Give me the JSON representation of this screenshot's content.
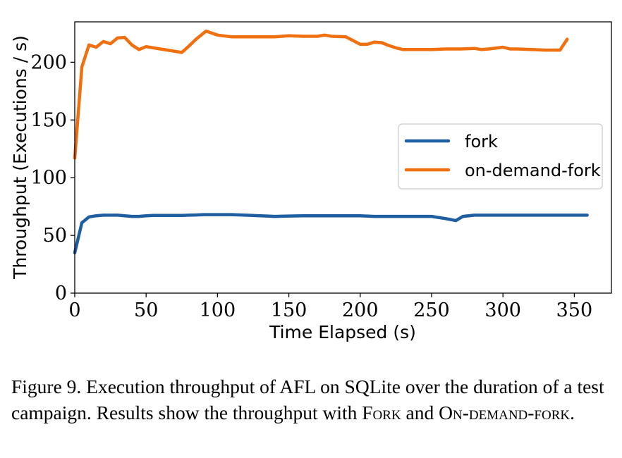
{
  "chart_data": {
    "type": "line",
    "xlabel": "Time Elapsed (s)",
    "ylabel": "Throughput (Executions / s)",
    "xlim": [
      0,
      376
    ],
    "ylim": [
      0,
      235
    ],
    "xticks": [
      0,
      50,
      100,
      150,
      200,
      250,
      300,
      350
    ],
    "yticks": [
      0,
      50,
      100,
      150,
      200
    ],
    "grid": false,
    "legend_position": "center-right",
    "series": [
      {
        "name": "fork",
        "color": "#1f5fa0",
        "x": [
          0,
          5,
          10,
          15,
          20,
          25,
          30,
          35,
          40,
          45,
          50,
          55,
          60,
          65,
          70,
          75,
          80,
          85,
          90,
          100,
          110,
          120,
          130,
          140,
          150,
          160,
          170,
          180,
          190,
          200,
          210,
          220,
          230,
          240,
          250,
          260,
          267,
          272,
          280,
          290,
          300,
          310,
          320,
          330,
          340,
          350,
          359
        ],
        "y": [
          35,
          61,
          66,
          67,
          67.5,
          67.5,
          67.5,
          67,
          66.5,
          66.5,
          67,
          67.3,
          67.3,
          67.3,
          67.3,
          67.3,
          67.5,
          67.7,
          68,
          68,
          68,
          67.5,
          67,
          66.5,
          66.8,
          67,
          67,
          67,
          67,
          67,
          66.5,
          66.5,
          66.5,
          66.5,
          66.5,
          64.5,
          62.8,
          66.5,
          67.5,
          67.5,
          67.5,
          67.5,
          67.5,
          67.5,
          67.5,
          67.5,
          67.5
        ]
      },
      {
        "name": "on-demand-fork",
        "color": "#f07010",
        "x": [
          0,
          5,
          10,
          15,
          20,
          25,
          30,
          35,
          40,
          45,
          50,
          55,
          60,
          65,
          70,
          75,
          80,
          85,
          92,
          100,
          110,
          120,
          130,
          140,
          150,
          160,
          170,
          175,
          180,
          190,
          200,
          205,
          210,
          215,
          220,
          225,
          230,
          235,
          240,
          250,
          260,
          270,
          280,
          285,
          290,
          300,
          305,
          310,
          320,
          330,
          340,
          345
        ],
        "y": [
          117,
          196,
          215,
          213,
          218,
          216,
          221,
          221.5,
          215,
          211,
          213.5,
          212.5,
          211.5,
          210.5,
          209.5,
          208.5,
          214,
          220,
          227,
          223.5,
          222,
          222,
          222,
          222,
          223,
          222.5,
          222.5,
          223.5,
          222.5,
          222,
          215.5,
          215.5,
          217.5,
          217,
          214.5,
          212.5,
          211,
          211,
          211,
          211,
          211.5,
          211.5,
          212,
          211,
          211.5,
          213,
          211.5,
          211.5,
          211,
          210.5,
          210.5,
          220
        ]
      }
    ]
  },
  "caption": {
    "lead": "Figure 9. Execution throughput of AFL on SQLite over the duration of a test campaign. Results show the throughput with ",
    "name1": "Fork",
    "mid": " and ",
    "name2": "On-demand-fork",
    "end": "."
  }
}
